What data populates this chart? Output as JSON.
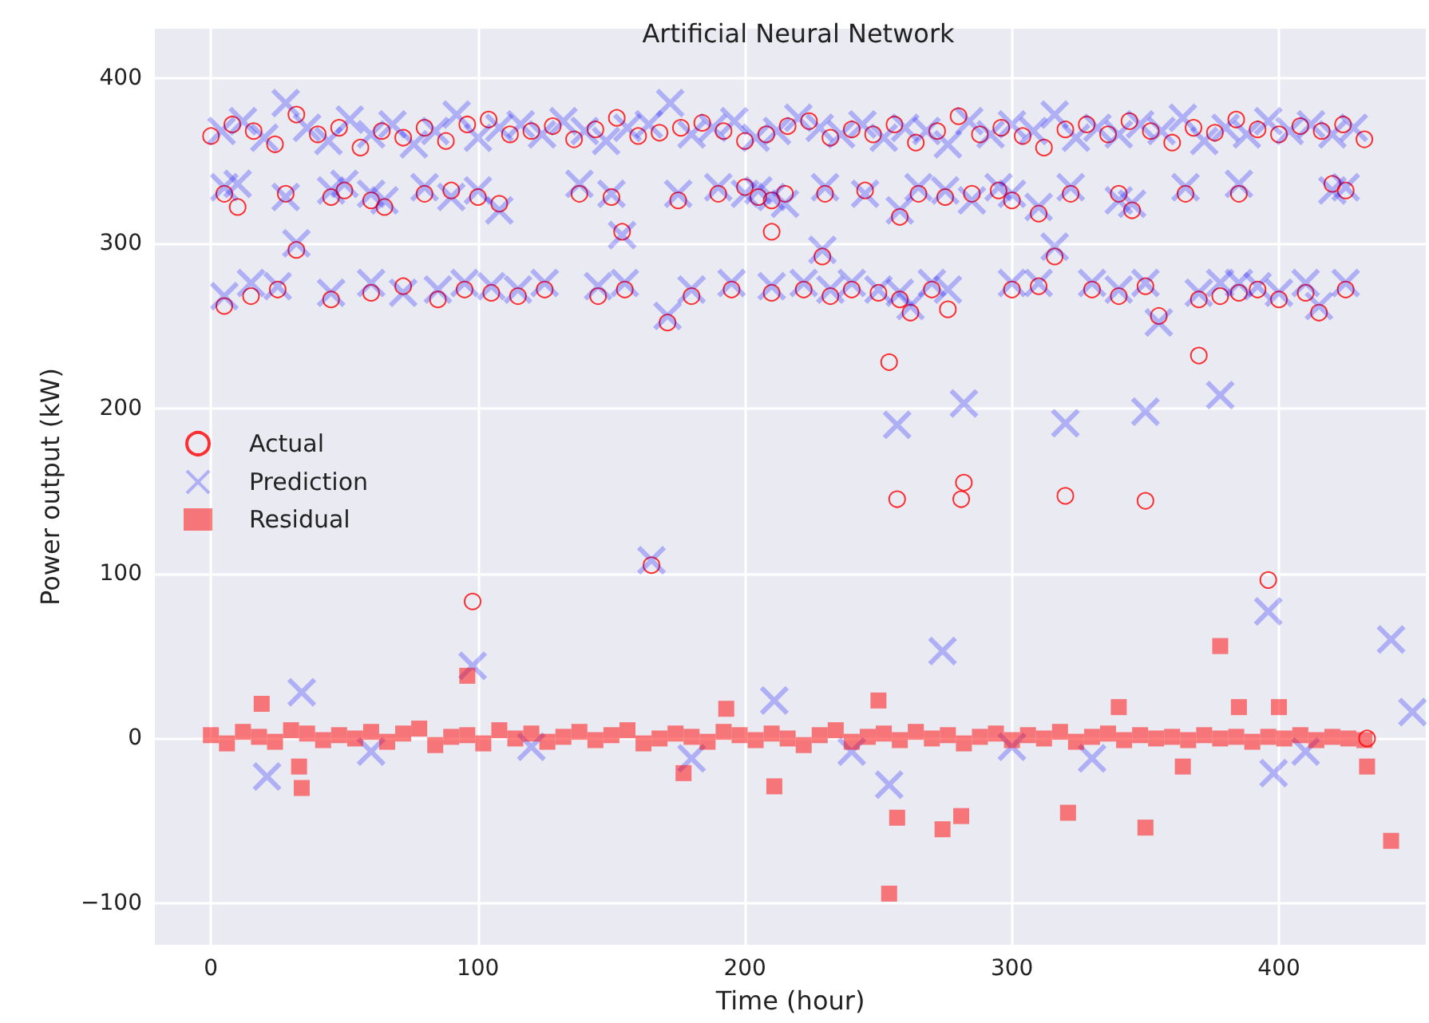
{
  "chart_data": {
    "type": "scatter",
    "title": "Artificial Neural Network",
    "xlabel": "Time (hour)",
    "ylabel": "Power output (kW)",
    "xlim": [
      -21,
      455
    ],
    "ylim": [
      -125,
      430
    ],
    "xticks": [
      0,
      100,
      200,
      300,
      400
    ],
    "yticks": [
      -100,
      0,
      100,
      200,
      300,
      400
    ],
    "grid": true,
    "legend": "left",
    "series": [
      {
        "name": "Actual",
        "color": "#ff0000",
        "marker": "circle",
        "x": [
          0,
          8,
          16,
          24,
          32,
          40,
          48,
          56,
          64,
          72,
          80,
          88,
          96,
          104,
          112,
          120,
          128,
          136,
          144,
          152,
          160,
          168,
          176,
          184,
          192,
          200,
          208,
          216,
          224,
          232,
          240,
          248,
          256,
          264,
          272,
          280,
          288,
          296,
          304,
          312,
          320,
          328,
          336,
          344,
          352,
          360,
          368,
          376,
          384,
          392,
          400,
          408,
          416,
          424,
          432,
          5,
          10,
          28,
          45,
          50,
          60,
          65,
          80,
          90,
          100,
          108,
          138,
          150,
          175,
          190,
          200,
          205,
          210,
          215,
          230,
          245,
          258,
          265,
          275,
          285,
          295,
          300,
          310,
          322,
          340,
          345,
          365,
          385,
          420,
          425,
          5,
          15,
          25,
          45,
          60,
          72,
          85,
          95,
          105,
          115,
          125,
          145,
          155,
          171,
          180,
          195,
          210,
          222,
          232,
          240,
          250,
          258,
          262,
          270,
          276,
          300,
          310,
          330,
          340,
          350,
          355,
          370,
          378,
          385,
          392,
          400,
          410,
          415,
          425,
          32,
          154,
          210,
          229,
          316,
          98,
          165,
          254,
          257,
          281,
          282,
          320,
          350,
          370,
          396,
          433
        ],
        "values": [
          365,
          372,
          368,
          360,
          378,
          366,
          370,
          358,
          368,
          364,
          370,
          362,
          372,
          375,
          366,
          368,
          371,
          363,
          369,
          376,
          365,
          367,
          370,
          373,
          368,
          362,
          366,
          371,
          374,
          364,
          369,
          366,
          372,
          361,
          368,
          377,
          366,
          370,
          365,
          358,
          369,
          372,
          366,
          374,
          368,
          361,
          370,
          367,
          375,
          369,
          366,
          371,
          368,
          372,
          363,
          330,
          322,
          330,
          328,
          332,
          326,
          322,
          330,
          332,
          328,
          324,
          330,
          328,
          326,
          330,
          334,
          328,
          326,
          330,
          330,
          332,
          316,
          330,
          328,
          330,
          332,
          326,
          318,
          330,
          330,
          320,
          330,
          330,
          336,
          332,
          262,
          268,
          272,
          266,
          270,
          274,
          266,
          272,
          270,
          268,
          272,
          268,
          272,
          252,
          268,
          272,
          270,
          272,
          268,
          272,
          270,
          266,
          258,
          272,
          260,
          272,
          274,
          272,
          268,
          274,
          256,
          266,
          268,
          270,
          272,
          266,
          270,
          258,
          272,
          296,
          307,
          307,
          292,
          292,
          83,
          105,
          228,
          145,
          145,
          155,
          147,
          144,
          232,
          96,
          0
        ]
      },
      {
        "name": "Prediction",
        "color": "#0000ff",
        "marker": "cross",
        "x": [
          4,
          12,
          20,
          28,
          36,
          44,
          52,
          60,
          68,
          76,
          84,
          92,
          100,
          108,
          116,
          124,
          132,
          140,
          148,
          156,
          164,
          172,
          180,
          188,
          196,
          204,
          212,
          220,
          228,
          236,
          244,
          252,
          260,
          268,
          276,
          284,
          292,
          300,
          308,
          316,
          324,
          332,
          340,
          348,
          356,
          364,
          372,
          380,
          388,
          396,
          404,
          412,
          420,
          428,
          5,
          10,
          28,
          45,
          50,
          60,
          65,
          80,
          90,
          100,
          108,
          138,
          150,
          175,
          190,
          200,
          205,
          210,
          215,
          230,
          245,
          258,
          265,
          275,
          285,
          295,
          300,
          310,
          322,
          340,
          345,
          365,
          385,
          420,
          425,
          5,
          15,
          25,
          45,
          60,
          72,
          85,
          95,
          105,
          115,
          125,
          145,
          155,
          171,
          180,
          195,
          210,
          222,
          232,
          240,
          250,
          258,
          262,
          270,
          276,
          300,
          310,
          330,
          340,
          350,
          355,
          370,
          378,
          385,
          392,
          400,
          410,
          415,
          425,
          32,
          154,
          229,
          316,
          98,
          165,
          257,
          282,
          320,
          350,
          378,
          396,
          274,
          442,
          21,
          254,
          398,
          34,
          211,
          450,
          60,
          120,
          180,
          300,
          330,
          240,
          410
        ],
        "values": [
          368,
          374,
          364,
          385,
          370,
          362,
          375,
          366,
          372,
          360,
          368,
          378,
          364,
          370,
          372,
          366,
          374,
          368,
          362,
          370,
          372,
          385,
          366,
          370,
          374,
          364,
          368,
          376,
          370,
          366,
          372,
          364,
          370,
          368,
          360,
          374,
          366,
          372,
          368,
          378,
          364,
          370,
          366,
          372,
          368,
          376,
          362,
          370,
          366,
          374,
          368,
          372,
          366,
          370,
          334,
          336,
          328,
          332,
          336,
          330,
          326,
          334,
          328,
          332,
          320,
          336,
          330,
          330,
          334,
          330,
          332,
          328,
          324,
          334,
          330,
          320,
          334,
          332,
          326,
          334,
          330,
          322,
          334,
          326,
          324,
          334,
          336,
          332,
          334,
          268,
          276,
          274,
          270,
          276,
          270,
          272,
          276,
          274,
          272,
          276,
          274,
          276,
          256,
          272,
          276,
          274,
          276,
          272,
          276,
          272,
          270,
          262,
          276,
          272,
          276,
          276,
          276,
          272,
          276,
          252,
          270,
          276,
          276,
          274,
          270,
          276,
          262,
          276,
          300,
          305,
          296,
          298,
          44,
          108,
          190,
          203,
          191,
          198,
          208,
          77,
          53,
          60,
          -23,
          -28,
          -21,
          28,
          23,
          16,
          -8,
          -5,
          -12,
          -5,
          -12,
          -8,
          -8
        ]
      },
      {
        "name": "Residual",
        "color": "#ff0000",
        "marker": "square",
        "x": [
          0,
          6,
          12,
          18,
          24,
          30,
          36,
          42,
          48,
          54,
          60,
          66,
          72,
          78,
          84,
          90,
          96,
          102,
          108,
          114,
          120,
          126,
          132,
          138,
          144,
          150,
          156,
          162,
          168,
          174,
          180,
          186,
          192,
          198,
          204,
          210,
          216,
          222,
          228,
          234,
          240,
          246,
          252,
          258,
          264,
          270,
          276,
          282,
          288,
          294,
          300,
          306,
          312,
          318,
          324,
          330,
          336,
          342,
          348,
          354,
          360,
          366,
          372,
          378,
          384,
          390,
          396,
          402,
          408,
          414,
          420,
          426,
          432,
          19,
          33,
          34,
          96,
          177,
          211,
          193,
          254,
          250,
          257,
          274,
          281,
          321,
          350,
          442,
          378,
          340,
          400,
          385,
          364,
          433
        ],
        "values": [
          2,
          -3,
          4,
          1,
          -2,
          5,
          3,
          -1,
          2,
          0,
          4,
          -2,
          3,
          6,
          -4,
          1,
          2,
          -3,
          5,
          0,
          3,
          -2,
          1,
          4,
          -1,
          2,
          5,
          -3,
          0,
          3,
          1,
          -2,
          4,
          2,
          -1,
          3,
          0,
          -4,
          2,
          5,
          -2,
          1,
          3,
          -1,
          4,
          0,
          2,
          -3,
          1,
          3,
          -1,
          2,
          0,
          4,
          -2,
          1,
          3,
          -1,
          2,
          0,
          1,
          -1,
          2,
          0,
          1,
          -2,
          1,
          0,
          2,
          -1,
          1,
          0,
          -1,
          21,
          -17,
          -30,
          38,
          -21,
          -29,
          18,
          -94,
          23,
          -48,
          -55,
          -47,
          -45,
          -54,
          -62,
          56,
          19,
          19,
          19,
          -17,
          -17
        ]
      }
    ]
  }
}
